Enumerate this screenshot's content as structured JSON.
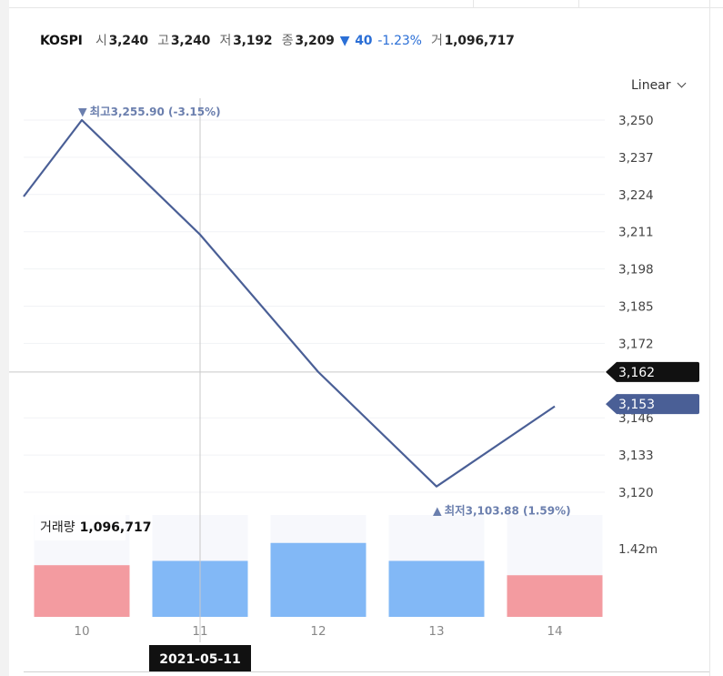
{
  "header": {
    "symbol": "KOSPI",
    "open_label": "시",
    "open": "3,240",
    "high_label": "고",
    "high": "3,240",
    "low_label": "저",
    "low": "3,192",
    "close_label": "종",
    "close": "3,209",
    "change_arrow": "▼",
    "change": "40",
    "change_pct": "-1.23%",
    "volume_label": "거",
    "volume": "1,096,717",
    "colors": {
      "down": "#2b6fd6"
    }
  },
  "scale_select": {
    "value": "Linear",
    "icon": "chevron-down-icon"
  },
  "chart_data": {
    "type": "line",
    "x": [
      10,
      11,
      12,
      13,
      14
    ],
    "x_tick_labels": [
      "10",
      "11",
      "12",
      "13",
      "14"
    ],
    "series": [
      {
        "values": [
          3250,
          3210,
          3162,
          3122,
          3150
        ],
        "color": "#4a5f96"
      }
    ],
    "y_ticks": [
      3250,
      3237,
      3224,
      3211,
      3198,
      3185,
      3172,
      3146,
      3133,
      3120
    ],
    "y_tick_labels": [
      "3,250",
      "3,237",
      "3,224",
      "3,211",
      "3,198",
      "3,185",
      "3,172",
      "3,146",
      "3,133",
      "3,120"
    ],
    "ylim": [
      3120,
      3250
    ],
    "grid": true,
    "max_annotation": {
      "arrow": "▼",
      "label": "최고",
      "value": "3,255.90 (-3.15%)",
      "x": 10
    },
    "min_annotation": {
      "arrow": "▲",
      "label": "최저",
      "value": "3,103.88 (1.59%)",
      "x": 13
    },
    "crosshair": {
      "x": 11,
      "y_value": 3162,
      "y_label": "3,162",
      "date_label": "2021-05-11"
    },
    "last_price": {
      "value": 3153,
      "label": "3,153",
      "color": "#4a5f96"
    },
    "volume": {
      "label": "거래량",
      "value_label": "1,096,717",
      "axis_label": "1.42m",
      "max": 1.42,
      "values": [
        0.72,
        0.78,
        1.03,
        0.78,
        0.58
      ],
      "directions": [
        "down",
        "up",
        "up",
        "up",
        "down"
      ],
      "colors": {
        "up": "#82b8f6",
        "down": "#f39ba0",
        "background": "#f7f8fc"
      }
    }
  }
}
